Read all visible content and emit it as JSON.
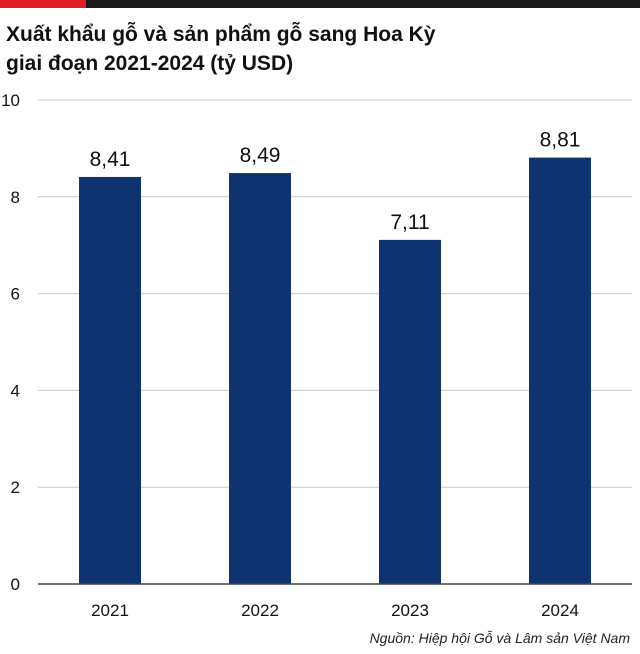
{
  "colors": {
    "accent": "#e31b23",
    "topbar": "#1a1a1a",
    "bar": "#0d3470",
    "grid": "#c8c8c8",
    "axis": "#444444",
    "text": "#111111"
  },
  "title_lines": [
    "Xuất khẩu gỗ và sản phẩm gỗ sang Hoa Kỳ",
    "giai đoạn 2021-2024 (tỷ USD)"
  ],
  "source": "Nguồn: Hiệp hội Gỗ và Lâm sản Việt Nam",
  "chart_data": {
    "type": "bar",
    "title": "Xuất khẩu gỗ và sản phẩm gỗ sang Hoa Kỳ giai đoạn 2021-2024 (tỷ USD)",
    "categories": [
      "2021",
      "2022",
      "2023",
      "2024"
    ],
    "values": [
      8.41,
      8.49,
      7.11,
      8.81
    ],
    "data_labels": [
      "8,41",
      "8,49",
      "7,11",
      "8,81"
    ],
    "ylim": [
      0,
      10
    ],
    "yticks": [
      0,
      2,
      4,
      6,
      8,
      10
    ],
    "grid": true,
    "legend": "none"
  }
}
